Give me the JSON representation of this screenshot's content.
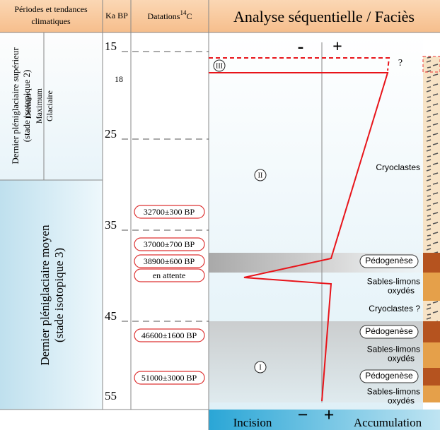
{
  "header": {
    "periods": [
      "Périodes et tendances",
      "climatiques"
    ],
    "ka": "Ka BP",
    "datations": "Datations",
    "datations_sup": "14",
    "datations_unit": "C",
    "analysis": "Analyse séquentielle / Faciès"
  },
  "periods": {
    "upper": [
      "Dernier pléniglaciaire supérieur",
      "(stade isotopique 2)"
    ],
    "lgm": [
      "Dernier",
      "Maximum",
      "Glaciaire"
    ],
    "middle": [
      "Dernier pléniglaciaire moyen",
      "(stade isotopique 3)"
    ]
  },
  "ka_ticks": [
    "15",
    "18",
    "25",
    "35",
    "45",
    "55"
  ],
  "datations": [
    "32700±300 BP",
    "37000±700 BP",
    "38900±600 BP",
    "en attente",
    "46600±1600 BP",
    "51000±3000 BP"
  ],
  "sequences": [
    "III",
    "II",
    "I"
  ],
  "question": "?",
  "axis": {
    "minus": "-",
    "plus": "+"
  },
  "facies": [
    {
      "lines": [
        "Cryoclastes"
      ]
    },
    {
      "lines": [
        "Pédogenèse"
      ],
      "pill": true
    },
    {
      "lines": [
        "Sables-limons",
        "oxydés"
      ]
    },
    {
      "lines": [
        "Cryoclastes ?"
      ]
    },
    {
      "lines": [
        "Pédogenèse"
      ],
      "pill": true
    },
    {
      "lines": [
        "Sables-limons",
        "oxydés"
      ]
    },
    {
      "lines": [
        "Pédogenèse"
      ],
      "pill": true
    },
    {
      "lines": [
        "Sables-limons",
        "oxydés"
      ]
    }
  ],
  "footer": {
    "incision": "Incision",
    "minus": "−",
    "plus": "+",
    "accumulation": "Accumulation"
  }
}
